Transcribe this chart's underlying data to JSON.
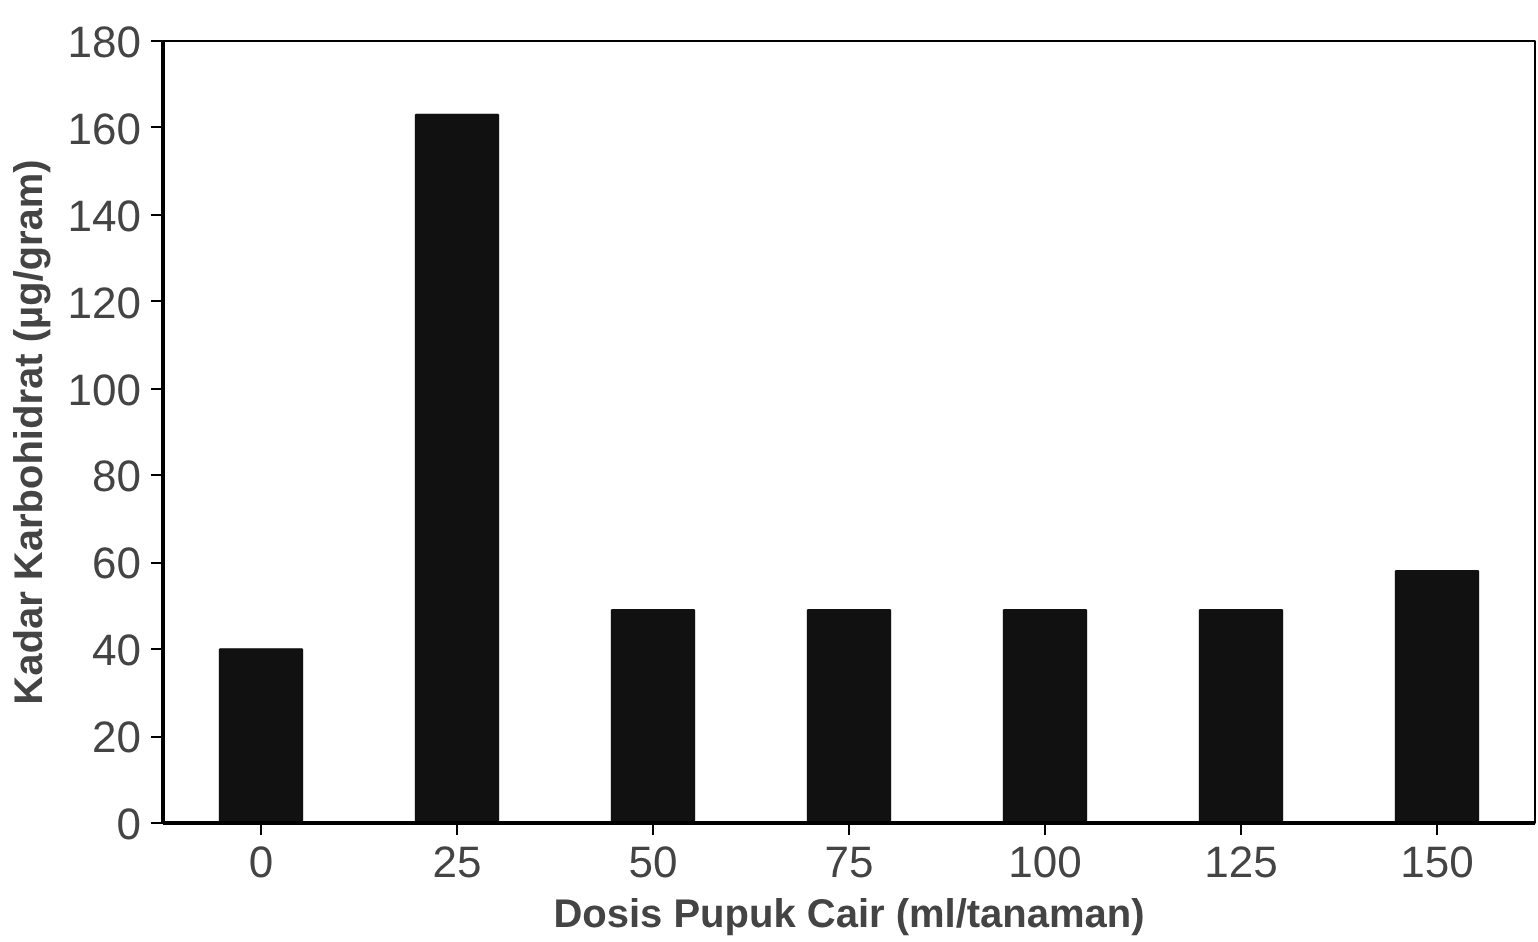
{
  "chart_data": {
    "type": "bar",
    "xlabel": "Dosis Pupuk Cair (ml/tanaman)",
    "ylabel": "Kadar Karbohidrat (µg/gram)",
    "categories": [
      "0",
      "25",
      "50",
      "75",
      "100",
      "125",
      "150"
    ],
    "values": [
      40,
      163,
      49,
      49,
      49,
      49,
      58
    ],
    "color": "#111111",
    "ylim": [
      0,
      180
    ],
    "yticks": [
      0,
      20,
      40,
      60,
      80,
      100,
      120,
      140,
      160,
      180
    ],
    "grid": false
  }
}
